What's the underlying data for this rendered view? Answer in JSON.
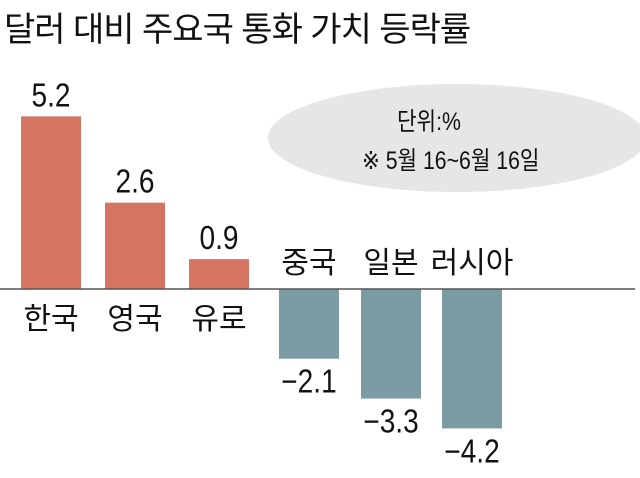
{
  "title": "달러 대비 주요국 통화 가치 등락률",
  "notes": {
    "unit": "단위:%",
    "period": "※ 5월 16~6월 16일"
  },
  "chart_data": {
    "type": "bar",
    "title": "달러 대비 주요국 통화 가치 등락률",
    "categories": [
      "한국",
      "영국",
      "유로",
      "중국",
      "일본",
      "러시아"
    ],
    "values": [
      5.2,
      2.6,
      0.9,
      -2.1,
      -3.3,
      -4.2
    ],
    "value_labels": [
      "5.2",
      "2.6",
      "0.9",
      "−2.1",
      "−3.3",
      "−4.2"
    ],
    "unit": "%",
    "colors": {
      "positive": "#d67462",
      "negative": "#7b9ba5",
      "baseline": "#555555"
    },
    "grid": false
  }
}
